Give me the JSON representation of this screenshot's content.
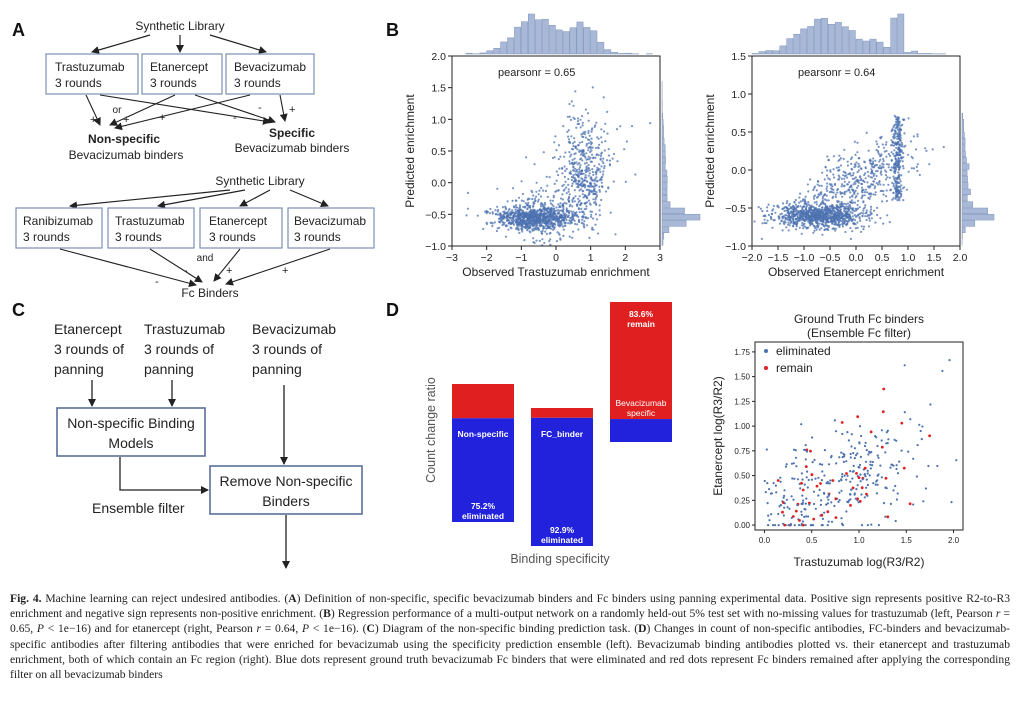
{
  "panels": {
    "A": "A",
    "B": "B",
    "C": "C",
    "D": "D"
  },
  "panel_a": {
    "top": {
      "library": "Synthetic Library",
      "boxes": [
        [
          "Trastuzumab",
          "3 rounds"
        ],
        [
          "Etanercept",
          "3 rounds"
        ],
        [
          "Bevacizumab",
          "3 rounds"
        ]
      ],
      "or": "or",
      "plus": "+",
      "minus": "-",
      "nonspecific_title": "Non-specific",
      "nonspecific_sub": "Bevacizumab binders",
      "specific_title": "Specific",
      "specific_sub": "Bevacizumab binders"
    },
    "bottom": {
      "library": "Synthetic Library",
      "boxes": [
        [
          "Ranibizumab",
          "3 rounds"
        ],
        [
          "Trastuzumab",
          "3 rounds"
        ],
        [
          "Etanercept",
          "3 rounds"
        ],
        [
          "Bevacizumab",
          "3 rounds"
        ]
      ],
      "and": "and",
      "plus": "+",
      "minus": "-",
      "result": "Fc Binders"
    }
  },
  "panel_c": {
    "in1": [
      "Etanercept",
      "3 rounds of",
      "panning"
    ],
    "in2": [
      "Trastuzumab",
      "3 rounds of",
      "panning"
    ],
    "in3": [
      "Bevacizumab",
      "3 rounds of",
      "panning"
    ],
    "model": [
      "Non-specific Binding",
      "Models"
    ],
    "remove": [
      "Remove Non-specific",
      "Binders"
    ],
    "ensemble": "Ensemble filter"
  },
  "chart_data": [
    {
      "type": "scatter",
      "xlabel": "Observed Trastuzumab enrichment",
      "ylabel": "Predicted enrichment",
      "annotation": "pearsonr = 0.65",
      "xlim": [
        -3,
        3
      ],
      "ylim": [
        -1,
        2
      ],
      "xticks": [
        "−3",
        "−2",
        "−1",
        "0",
        "1",
        "2",
        "3"
      ],
      "yticks": [
        "−1.0",
        "−0.5",
        "0.0",
        "0.5",
        "1.0",
        "1.5",
        "2.0"
      ],
      "color": "#4c72b0",
      "marginals": true
    },
    {
      "type": "scatter",
      "xlabel": "Observed Etanercept enrichment",
      "ylabel": "Predicted enrichment",
      "annotation": "pearsonr = 0.64",
      "xlim": [
        -2,
        2
      ],
      "ylim": [
        -1,
        1.5
      ],
      "xticks": [
        "−2.0",
        "−1.5",
        "−1.0",
        "−0.5",
        "0.0",
        "0.5",
        "1.0",
        "1.5",
        "2.0"
      ],
      "yticks": [
        "−1.0",
        "−0.5",
        "0.0",
        "0.5",
        "1.0",
        "1.5"
      ],
      "color": "#4c72b0",
      "marginals": true
    },
    {
      "type": "bar",
      "stacked": true,
      "xlabel": "Binding specificity",
      "ylabel": "Count change ratio",
      "categories": [
        "Non-specific",
        "FC_binder",
        "Bevacizumab specific"
      ],
      "series": [
        {
          "name": "eliminated",
          "values": [
            0.752,
            0.929,
            0.164
          ],
          "color": "#2222dd"
        },
        {
          "name": "remain",
          "values": [
            0.248,
            0.071,
            0.836
          ],
          "color": "#e02020"
        }
      ],
      "labels": {
        "nonspecific_cat": "Non-specific",
        "nonspecific_elim": [
          "75.2%",
          "eliminated"
        ],
        "fc_cat": "FC_binder",
        "fc_elim": [
          "92.9%",
          "eliminated"
        ],
        "bev_remain": [
          "83.6%",
          "remain"
        ],
        "bev_cat": [
          "Bevacizumab",
          "specific"
        ]
      }
    },
    {
      "type": "scatter",
      "title": [
        "Ground Truth Fc binders",
        "(Ensemble Fc filter)"
      ],
      "xlabel": "Trastuzumab log(R3/R2)",
      "ylabel": "Etanercept log(R3/R2)",
      "xlim": [
        -0.1,
        2.1
      ],
      "ylim": [
        -0.05,
        1.85
      ],
      "xticks": [
        "0.0",
        "0.5",
        "1.0",
        "1.5",
        "2.0"
      ],
      "yticks": [
        "0.00",
        "0.25",
        "0.50",
        "0.75",
        "1.00",
        "1.25",
        "1.50",
        "1.75"
      ],
      "legend": [
        {
          "name": "eliminated",
          "color": "#4c72b0"
        },
        {
          "name": "remain",
          "color": "#e02020"
        }
      ],
      "legend_position": "top-left"
    }
  ],
  "caption": {
    "label": "Fig. 4.",
    "title": " Machine learning can reject undesired antibodies. (",
    "A": "A",
    "t1": ") Definition of non-specific, specific bevacizumab binders and Fc binders using panning experimental data. Positive sign represents positive R2-to-R3 enrichment and negative sign represents non-positive enrichment. (",
    "B": "B",
    "t2": ") Regression performance of a multi-output network on a randomly held-out 5% test set with no-missing values for trastuzumab (left, Pearson ",
    "r1": "r",
    "t3": " = 0.65, ",
    "p1": "P",
    "t4": " < 1e−16) and for etanercept (right, Pearson ",
    "r2": "r",
    "t5": " = 0.64, ",
    "p2": "P",
    "t6": " < 1e−16). (",
    "C": "C",
    "t7": ") Diagram of the non-specific binding prediction task. (",
    "D": "D",
    "t8": ") Changes in count of non-specific antibodies, FC-binders and bevacizumab-specific antibodies after filtering antibodies that were enriched for bevacizumab using the specificity prediction ensemble (left). Bevacizumab binding antibodies plotted vs. their etanercept and trastuzumab enrichment, both of which contain an Fc region (right). Blue dots represent ground truth bevacizumab Fc binders that were eliminated and red dots represent Fc binders remained after applying the corresponding filter on all bevacizumab binders"
  }
}
